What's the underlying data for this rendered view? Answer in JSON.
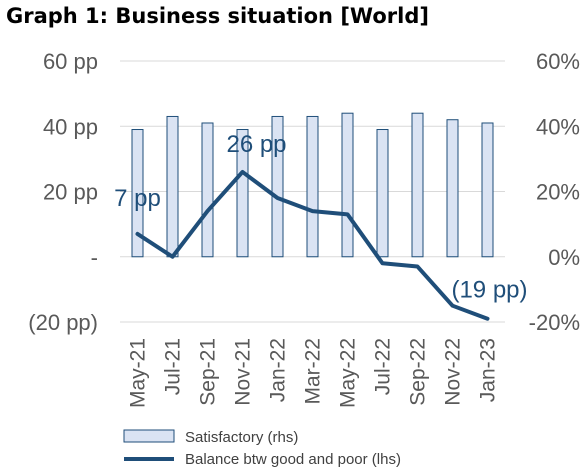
{
  "title": "Graph 1: Business situation [World]",
  "chart_data": {
    "type": "bar+line",
    "title": "Graph 1: Business situation [World]",
    "categories": [
      "May-21",
      "Jul-21",
      "Sep-21",
      "Nov-21",
      "Jan-22",
      "Mar-22",
      "May-22",
      "Jul-22",
      "Sep-22",
      "Nov-22",
      "Jan-23"
    ],
    "left_axis": {
      "range": [
        -20,
        60
      ],
      "ticks": [
        -20,
        0,
        20,
        40,
        60
      ],
      "tick_labels": [
        "(20 pp)",
        "-",
        "20 pp",
        "40 pp",
        "60 pp"
      ]
    },
    "right_axis": {
      "range": [
        -20,
        60
      ],
      "ticks": [
        -20,
        0,
        20,
        40,
        60
      ],
      "tick_labels": [
        "-20%",
        "0%",
        "20%",
        "40%",
        "60%"
      ]
    },
    "series": [
      {
        "name": "Satisfactory (rhs)",
        "type": "bar",
        "axis": "right",
        "color": "#dae3f3",
        "border": "#1f4e79",
        "values": [
          39,
          43,
          41,
          39,
          43,
          43,
          44,
          39,
          44,
          42,
          41
        ]
      },
      {
        "name": "Balance btw good and poor (lhs)",
        "type": "line",
        "axis": "left",
        "color": "#1f4e79",
        "values": [
          7,
          0,
          14,
          26,
          18,
          14,
          13,
          -2,
          -3,
          -15,
          -19
        ]
      }
    ],
    "annotations": [
      {
        "text": "7 pp",
        "index": 0
      },
      {
        "text": "26 pp",
        "index": 3
      },
      {
        "text": "(19 pp)",
        "index": 10
      }
    ],
    "grid": true,
    "legend": "bottom-left"
  }
}
